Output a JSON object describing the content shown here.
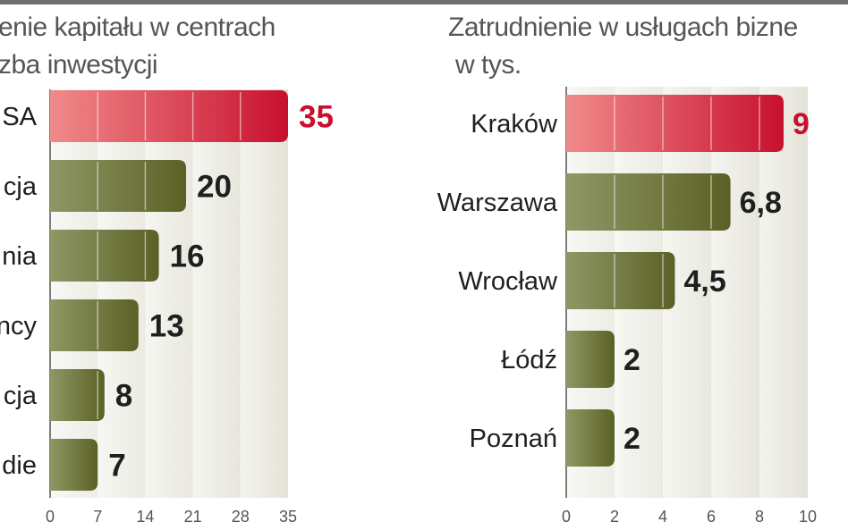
{
  "chart_data": [
    {
      "type": "bar",
      "orientation": "horizontal",
      "title_lines": [
        "enie kapitału w centrach",
        "zba inwestycji"
      ],
      "categories": [
        "SA",
        "cja",
        "nia",
        "ncy",
        "cja",
        "die"
      ],
      "values": [
        35,
        20,
        16,
        13,
        8,
        7
      ],
      "value_labels": [
        "35",
        "20",
        "16",
        "13",
        "8",
        "7"
      ],
      "highlight_index": 0,
      "xlim": [
        0,
        35
      ],
      "xticks": [
        0,
        7,
        14,
        21,
        28,
        35
      ]
    },
    {
      "type": "bar",
      "orientation": "horizontal",
      "title_lines": [
        "Zatrudnienie w usługach bizne",
        "w tys."
      ],
      "categories": [
        "Kraków",
        "Warszawa",
        "Wrocław",
        "Łódź",
        "Poznań"
      ],
      "values": [
        9,
        6.8,
        4.5,
        2,
        2
      ],
      "value_labels": [
        "9",
        "6,8",
        "4,5",
        "2",
        "2"
      ],
      "highlight_index": 0,
      "xlim": [
        0,
        10
      ],
      "xticks": [
        0,
        2,
        4,
        6,
        8,
        10
      ]
    }
  ],
  "colors": {
    "highlight_dark": "#c8102e",
    "highlight_light": "#f08a8a",
    "bar_dark": "#5b6125",
    "bar_light": "#8f9765",
    "band_light": "#f2f2ec",
    "band_dark": "#dfdfd2",
    "highlight_label": "#c8102e",
    "label": "#1f1f1f",
    "axis": "#555555",
    "top_rule": "#6f6f6f"
  }
}
